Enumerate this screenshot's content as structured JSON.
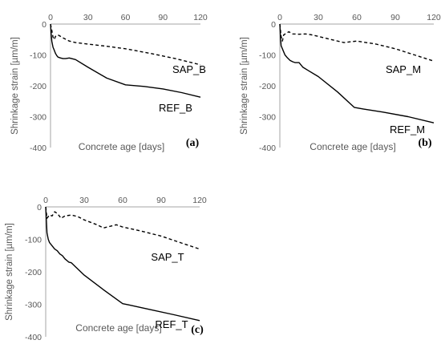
{
  "chart_data": [
    {
      "type": "line",
      "panel_label": "(a)",
      "xlabel": "Concrete age [days]",
      "ylabel": "Shrinkage strain [µm/m]",
      "xlim": [
        0,
        120
      ],
      "ylim": [
        -400,
        0
      ],
      "xticks": [
        "0",
        "30",
        "60",
        "90",
        "120"
      ],
      "yticks": [
        "0",
        "-100",
        "-200",
        "-300",
        "-400"
      ],
      "grid": false,
      "series": [
        {
          "name": "SAP_B",
          "style": "dashed",
          "x": [
            0,
            1,
            2,
            3,
            4,
            6,
            8,
            10,
            15,
            20,
            30,
            45,
            60,
            80,
            100,
            120
          ],
          "y": [
            0,
            -20,
            -42,
            -50,
            -40,
            -35,
            -40,
            -45,
            -55,
            -60,
            -65,
            -72,
            -80,
            -95,
            -112,
            -132
          ]
        },
        {
          "name": "REF_B",
          "style": "solid",
          "x": [
            0,
            0.5,
            1,
            2,
            3,
            4,
            5,
            6,
            8,
            10,
            12,
            15,
            20,
            30,
            45,
            60,
            75,
            90,
            105,
            120
          ],
          "y": [
            0,
            -30,
            -55,
            -75,
            -85,
            -95,
            -102,
            -107,
            -110,
            -112,
            -112,
            -110,
            -115,
            -140,
            -175,
            -197,
            -202,
            -210,
            -222,
            -237
          ]
        }
      ]
    },
    {
      "type": "line",
      "panel_label": "(b)",
      "xlabel": "Concrete age [days]",
      "ylabel": "Shrinkage strain [µm/m]",
      "xlim": [
        0,
        120
      ],
      "ylim": [
        -400,
        0
      ],
      "xticks": [
        "0",
        "30",
        "60",
        "90",
        "120"
      ],
      "yticks": [
        "0",
        "-100",
        "-200",
        "-300",
        "-400"
      ],
      "grid": false,
      "series": [
        {
          "name": "SAP_M",
          "style": "dashed",
          "x": [
            0,
            1,
            2,
            3,
            5,
            7,
            10,
            15,
            20,
            25,
            30,
            40,
            50,
            60,
            75,
            90,
            105,
            120
          ],
          "y": [
            0,
            -40,
            -55,
            -35,
            -30,
            -25,
            -32,
            -33,
            -32,
            -35,
            -40,
            -50,
            -60,
            -55,
            -65,
            -80,
            -100,
            -120
          ]
        },
        {
          "name": "REF_M",
          "style": "solid",
          "x": [
            0,
            0.5,
            1,
            2,
            3,
            4,
            6,
            8,
            10,
            12,
            15,
            18,
            22,
            30,
            45,
            58,
            65,
            80,
            100,
            120
          ],
          "y": [
            0,
            -40,
            -70,
            -80,
            -90,
            -100,
            -110,
            -118,
            -122,
            -125,
            -125,
            -140,
            -150,
            -170,
            -220,
            -270,
            -275,
            -285,
            -300,
            -320
          ]
        }
      ]
    },
    {
      "type": "line",
      "panel_label": "(c)",
      "xlabel": "Concrete age [days]",
      "ylabel": "Shrinkage strain [µm/m]",
      "xlim": [
        0,
        120
      ],
      "ylim": [
        -400,
        0
      ],
      "xticks": [
        "0",
        "30",
        "60",
        "90",
        "120"
      ],
      "yticks": [
        "0",
        "-100",
        "-200",
        "-300",
        "-400"
      ],
      "grid": false,
      "series": [
        {
          "name": "SAP_T",
          "style": "dashed",
          "x": [
            0,
            1,
            2,
            3,
            5,
            7,
            9,
            12,
            15,
            20,
            25,
            30,
            40,
            45,
            50,
            55,
            60,
            75,
            90,
            105,
            120
          ],
          "y": [
            0,
            -35,
            -30,
            -25,
            -28,
            -15,
            -20,
            -35,
            -28,
            -25,
            -30,
            -40,
            -55,
            -65,
            -60,
            -55,
            -62,
            -75,
            -90,
            -110,
            -130
          ]
        },
        {
          "name": "REF_T",
          "style": "solid",
          "x": [
            0,
            0.5,
            1,
            2,
            3,
            5,
            7,
            9,
            11,
            13,
            15,
            18,
            20,
            30,
            45,
            60,
            65,
            80,
            100,
            120
          ],
          "y": [
            0,
            -40,
            -80,
            -100,
            -110,
            -120,
            -130,
            -135,
            -145,
            -150,
            -160,
            -170,
            -172,
            -210,
            -255,
            -298,
            -302,
            -315,
            -332,
            -350
          ]
        }
      ]
    }
  ]
}
